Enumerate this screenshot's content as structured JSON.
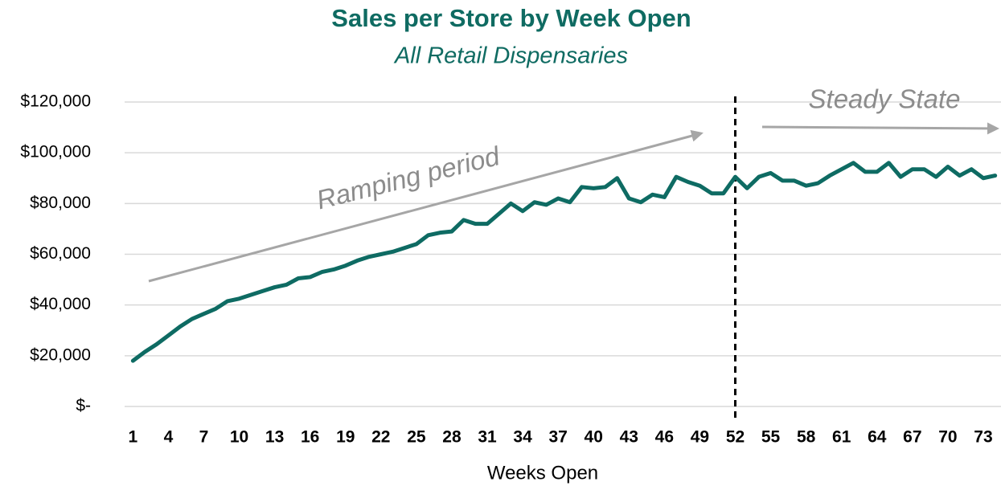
{
  "chart_data": {
    "type": "line",
    "title": "Sales per Store by Week Open",
    "subtitle": "All Retail Dispensaries",
    "x_label": "Weeks Open",
    "annotations": [
      "Ramping period",
      "Steady State"
    ],
    "vline_x": 52,
    "x": [
      1,
      2,
      3,
      4,
      5,
      6,
      7,
      8,
      9,
      10,
      11,
      12,
      13,
      14,
      15,
      16,
      17,
      18,
      19,
      20,
      21,
      22,
      23,
      24,
      25,
      26,
      27,
      28,
      29,
      30,
      31,
      32,
      33,
      34,
      35,
      36,
      37,
      38,
      39,
      40,
      41,
      42,
      43,
      44,
      45,
      46,
      47,
      48,
      49,
      50,
      51,
      52,
      53,
      54,
      55,
      56,
      57,
      58,
      59,
      60,
      61,
      62,
      63,
      64,
      65,
      66,
      67,
      68,
      69,
      70,
      71,
      72,
      73,
      74
    ],
    "series": [
      {
        "name": "Sales per Store",
        "color": "#0e6b63",
        "values": [
          18000,
          21500,
          24500,
          28000,
          31500,
          34500,
          36500,
          38500,
          41500,
          42500,
          44000,
          45500,
          47000,
          48000,
          50500,
          51000,
          53000,
          54000,
          55500,
          57500,
          59000,
          60000,
          61000,
          62500,
          64000,
          67500,
          68500,
          69000,
          73500,
          72000,
          72000,
          76000,
          80000,
          77000,
          80500,
          79500,
          82000,
          80500,
          86500,
          86000,
          86500,
          90000,
          82000,
          80500,
          83500,
          82500,
          90500,
          88500,
          87000,
          84000,
          84000,
          90500,
          86000,
          90500,
          92000,
          89000,
          89000,
          87000,
          88000,
          91000,
          93500,
          96000,
          92500,
          92500,
          96000,
          90500,
          93500,
          93500,
          90500,
          94500,
          91000,
          93500,
          90000,
          91000
        ]
      }
    ],
    "xlim": [
      0.5,
      74.5
    ],
    "xticks": [
      1,
      4,
      7,
      10,
      13,
      16,
      19,
      22,
      25,
      28,
      31,
      34,
      37,
      40,
      43,
      46,
      49,
      52,
      55,
      58,
      61,
      64,
      67,
      70,
      73
    ],
    "ylim": [
      0,
      120000
    ],
    "yticks": [
      {
        "value": 0,
        "label": "$-"
      },
      {
        "value": 20000,
        "label": "$20,000"
      },
      {
        "value": 40000,
        "label": "$40,000"
      },
      {
        "value": 60000,
        "label": "$60,000"
      },
      {
        "value": 80000,
        "label": "$80,000"
      },
      {
        "value": 100000,
        "label": "$100,000"
      },
      {
        "value": 120000,
        "label": "$120,000"
      }
    ],
    "grid": true
  }
}
